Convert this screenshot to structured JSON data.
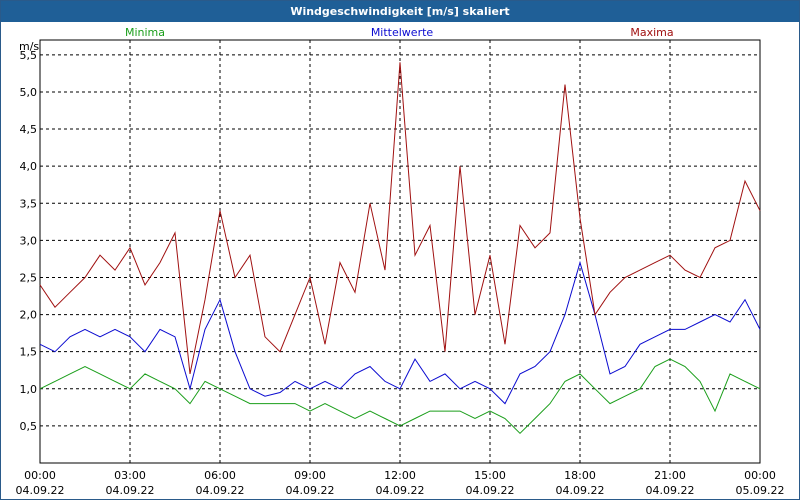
{
  "window": {
    "title": "Windgeschwindigkeit [m/s] skaliert"
  },
  "colors": {
    "min": "#1a9e1a",
    "mean": "#0b0bd0",
    "max": "#a01010",
    "grid": "#000000",
    "title_bg": "#1f5f97"
  },
  "chart_data": {
    "type": "line",
    "title": "Windgeschwindigkeit [m/s] skaliert",
    "ylabel": "m/s",
    "ylim": [
      0,
      5.7
    ],
    "yticks": [
      "0,5",
      "1,0",
      "1,5",
      "2,0",
      "2,5",
      "3,0",
      "3,5",
      "4,0",
      "4,5",
      "5,0",
      "5,5"
    ],
    "ytick_values": [
      0.5,
      1.0,
      1.5,
      2.0,
      2.5,
      3.0,
      3.5,
      4.0,
      4.5,
      5.0,
      5.5
    ],
    "xlim": [
      0,
      24
    ],
    "xticks": [
      {
        "time": "00:00",
        "date": "04.09.22"
      },
      {
        "time": "03:00",
        "date": "04.09.22"
      },
      {
        "time": "06:00",
        "date": "04.09.22"
      },
      {
        "time": "09:00",
        "date": "04.09.22"
      },
      {
        "time": "12:00",
        "date": "04.09.22"
      },
      {
        "time": "15:00",
        "date": "04.09.22"
      },
      {
        "time": "18:00",
        "date": "04.09.22"
      },
      {
        "time": "21:00",
        "date": "04.09.22"
      },
      {
        "time": "00:00",
        "date": "05.09.22"
      }
    ],
    "grid": true,
    "legend_position": "top",
    "x": [
      0,
      0.5,
      1,
      1.5,
      2,
      2.5,
      3,
      3.5,
      4,
      4.5,
      5,
      5.5,
      6,
      6.5,
      7,
      7.5,
      8,
      8.5,
      9,
      9.5,
      10,
      10.5,
      11,
      11.5,
      12,
      12.5,
      13,
      13.5,
      14,
      14.5,
      15,
      15.5,
      16,
      16.5,
      17,
      17.5,
      18,
      18.5,
      19,
      19.5,
      20,
      20.5,
      21,
      21.5,
      22,
      22.5,
      23,
      23.5,
      24
    ],
    "series": [
      {
        "name": "Minima",
        "values": [
          1.0,
          1.1,
          1.2,
          1.3,
          1.2,
          1.1,
          1.0,
          1.2,
          1.1,
          1.0,
          0.8,
          1.1,
          1.0,
          0.9,
          0.8,
          0.8,
          0.8,
          0.8,
          0.7,
          0.8,
          0.7,
          0.6,
          0.7,
          0.6,
          0.5,
          0.6,
          0.7,
          0.7,
          0.7,
          0.6,
          0.7,
          0.6,
          0.4,
          0.6,
          0.8,
          1.1,
          1.2,
          1.0,
          0.8,
          0.9,
          1.0,
          1.3,
          1.4,
          1.3,
          1.1,
          0.7,
          1.2,
          1.1,
          1.0
        ]
      },
      {
        "name": "Mittelwerte",
        "values": [
          1.6,
          1.5,
          1.7,
          1.8,
          1.7,
          1.8,
          1.7,
          1.5,
          1.8,
          1.7,
          1.0,
          1.8,
          2.2,
          1.5,
          1.0,
          0.9,
          0.95,
          1.1,
          1.0,
          1.1,
          1.0,
          1.2,
          1.3,
          1.1,
          1.0,
          1.4,
          1.1,
          1.2,
          1.0,
          1.1,
          1.0,
          0.8,
          1.2,
          1.3,
          1.5,
          2.0,
          2.7,
          2.0,
          1.2,
          1.3,
          1.6,
          1.7,
          1.8,
          1.8,
          1.9,
          2.0,
          1.9,
          2.2,
          1.8
        ]
      },
      {
        "name": "Maxima",
        "values": [
          2.4,
          2.1,
          2.3,
          2.5,
          2.8,
          2.6,
          2.9,
          2.4,
          2.7,
          3.1,
          1.2,
          2.2,
          3.4,
          2.5,
          2.8,
          1.7,
          1.5,
          2.0,
          2.5,
          1.6,
          2.7,
          2.3,
          3.5,
          2.6,
          5.4,
          2.8,
          3.2,
          1.5,
          4.0,
          2.0,
          2.8,
          1.6,
          3.2,
          2.9,
          3.1,
          5.1,
          3.3,
          2.0,
          2.3,
          2.5,
          2.6,
          2.7,
          2.8,
          2.6,
          2.5,
          2.9,
          3.0,
          3.8,
          3.4
        ]
      }
    ]
  }
}
